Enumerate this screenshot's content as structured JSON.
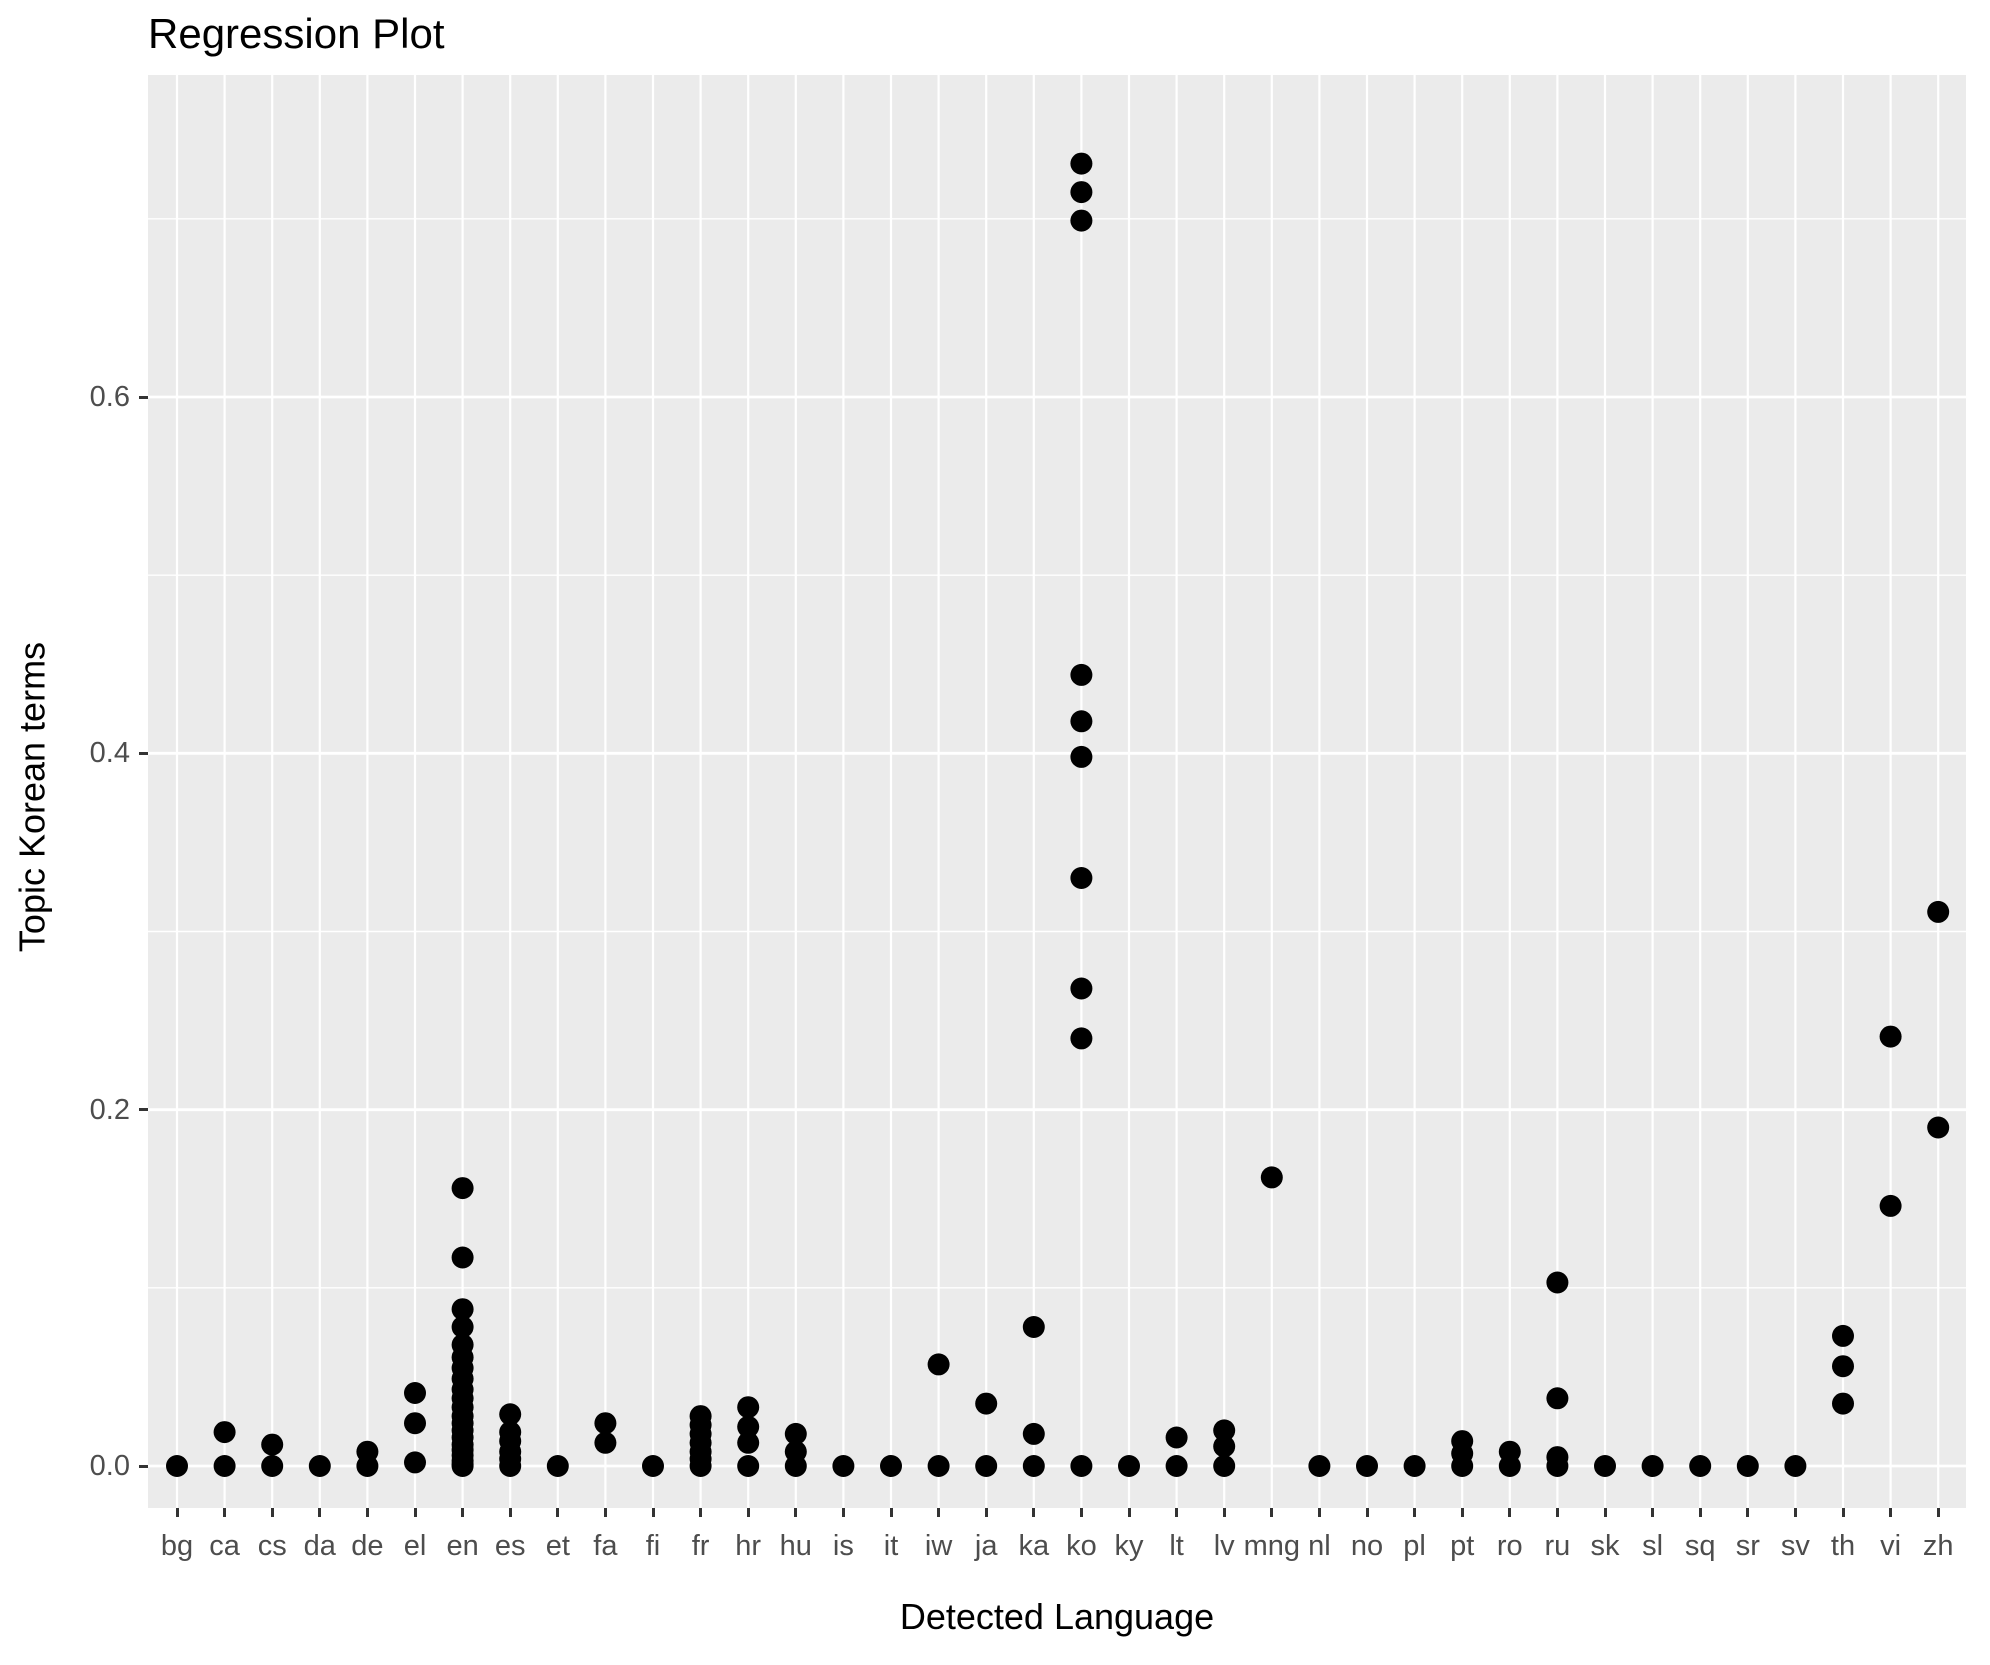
{
  "chart": {
    "title": "Regression Plot",
    "x_axis_title": "Detected Language",
    "y_axis_title": "Topic Korean terms",
    "y_tick_labels": [
      "0.0",
      "0.2",
      "0.4",
      "0.6"
    ],
    "colors": {
      "panel_background": "#EBEBEB",
      "gridline": "#FFFFFF",
      "point": "#000000",
      "axis_text": "#4D4D4D",
      "tick_mark": "#333333",
      "title_text": "#000000"
    }
  },
  "chart_data": {
    "type": "scatter",
    "title": "Regression Plot",
    "xlabel": "Detected Language",
    "ylabel": "Topic Korean terms",
    "grid": true,
    "legend": "none",
    "categories": [
      "bg",
      "ca",
      "cs",
      "da",
      "de",
      "el",
      "en",
      "es",
      "et",
      "fa",
      "fi",
      "fr",
      "hr",
      "hu",
      "is",
      "it",
      "iw",
      "ja",
      "ka",
      "ko",
      "ky",
      "lt",
      "lv",
      "mng",
      "nl",
      "no",
      "pl",
      "pt",
      "ro",
      "ru",
      "sk",
      "sl",
      "sq",
      "sr",
      "sv",
      "th",
      "vi",
      "zh"
    ],
    "y_ticks": [
      0.0,
      0.2,
      0.4,
      0.6
    ],
    "y_minor_ticks": [
      0.1,
      0.3,
      0.5,
      0.7
    ],
    "ylim": [
      -0.024,
      0.781
    ],
    "points": [
      [
        0.0
      ],
      [
        0.019,
        0.0
      ],
      [
        0.012,
        0.0
      ],
      [
        0.0
      ],
      [
        0.008,
        0.0
      ],
      [
        0.041,
        0.024,
        0.002
      ],
      [
        0.156,
        0.117,
        0.088,
        0.078,
        0.068,
        0.061,
        0.055,
        0.049,
        0.043,
        0.038,
        0.033,
        0.028,
        0.024,
        0.02,
        0.016,
        0.012,
        0.009,
        0.006,
        0.003,
        0.001,
        0.0
      ],
      [
        0.029,
        0.019,
        0.014,
        0.008,
        0.004,
        0.0
      ],
      [
        0.0
      ],
      [
        0.024,
        0.013
      ],
      [
        0.0
      ],
      [
        0.028,
        0.023,
        0.018,
        0.013,
        0.008,
        0.004,
        0.0
      ],
      [
        0.033,
        0.022,
        0.013,
        0.0
      ],
      [
        0.018,
        0.008,
        0.0
      ],
      [
        0.0
      ],
      [
        0.0
      ],
      [
        0.057,
        0.0
      ],
      [
        0.035,
        0.0
      ],
      [
        0.078,
        0.018,
        0.0
      ],
      [
        0.731,
        0.715,
        0.699,
        0.444,
        0.418,
        0.398,
        0.33,
        0.268,
        0.24,
        0.0
      ],
      [
        0.0
      ],
      [
        0.016,
        0.0
      ],
      [
        0.02,
        0.011,
        0.0
      ],
      [
        0.162
      ],
      [
        0.0
      ],
      [
        0.0
      ],
      [
        0.0
      ],
      [
        0.014,
        0.007,
        0.0
      ],
      [
        0.008,
        0.0
      ],
      [
        0.103,
        0.038,
        0.005,
        0.0
      ],
      [
        0.0
      ],
      [
        0.0
      ],
      [
        0.0
      ],
      [
        0.0
      ],
      [
        0.0
      ],
      [
        0.073,
        0.056,
        0.035
      ],
      [
        0.241,
        0.146
      ],
      [
        0.311,
        0.19
      ]
    ]
  }
}
